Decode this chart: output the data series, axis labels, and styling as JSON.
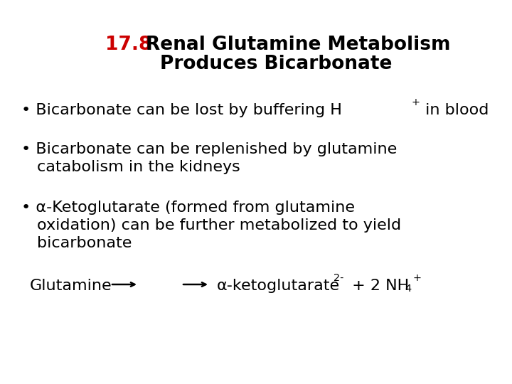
{
  "background_color": "#ffffff",
  "title_number": "17.8",
  "title_number_color": "#cc0000",
  "title_line1": "  Renal Glutamine Metabolism",
  "title_line2": "Produces Bicarbonate",
  "title_fontsize": 19,
  "title_fontweight": "bold",
  "bullet1_main": "Bicarbonate can be lost by buffering H",
  "bullet1_super": "+",
  "bullet1_end": " in blood",
  "bullet2_line1": "Bicarbonate can be replenished by glutamine",
  "bullet2_line2": "catabolism in the kidneys",
  "bullet3_line1": "α-Ketoglutarate (formed from glutamine",
  "bullet3_line2": "oxidation) can be further metabolized to yield",
  "bullet3_line3": "bicarbonate",
  "eq_left": "Glutamine",
  "eq_alpha": "α-ketoglutarate",
  "eq_super": "2-",
  "eq_mid": " + 2 NH",
  "eq_sub": "4",
  "eq_final": "+",
  "text_color": "#000000",
  "fontsize": 16,
  "fontfamily": "DejaVu Sans"
}
